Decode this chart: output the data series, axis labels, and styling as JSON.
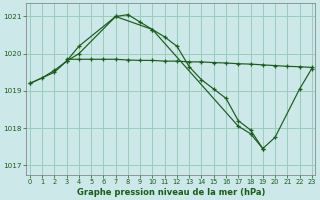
{
  "background_color": "#cce8e8",
  "grid_color": "#99ccbb",
  "line_color": "#1a5c1a",
  "xlabel": "Graphe pression niveau de la mer (hPa)",
  "xlim": [
    -0.3,
    23.3
  ],
  "ylim": [
    1016.75,
    1021.35
  ],
  "yticks": [
    1017,
    1018,
    1019,
    1020,
    1021
  ],
  "xticks": [
    0,
    1,
    2,
    3,
    4,
    5,
    6,
    7,
    8,
    9,
    10,
    11,
    12,
    13,
    14,
    15,
    16,
    17,
    18,
    19,
    20,
    21,
    22,
    23
  ],
  "s1_x": [
    0,
    1,
    2,
    3,
    4,
    7,
    8,
    9,
    10,
    11,
    12,
    13,
    14,
    15,
    16,
    17,
    18,
    19
  ],
  "s1_y": [
    1019.2,
    1019.35,
    1019.55,
    1019.8,
    1020.0,
    1021.0,
    1021.05,
    1020.85,
    1020.65,
    1020.45,
    1020.2,
    1019.65,
    1019.3,
    1019.05,
    1018.8,
    1018.2,
    1017.95,
    1017.45
  ],
  "s2_x": [
    0,
    2,
    3,
    4,
    7,
    10,
    17,
    18,
    19,
    20,
    22,
    23
  ],
  "s2_y": [
    1019.2,
    1019.5,
    1019.8,
    1020.2,
    1021.0,
    1020.65,
    1018.05,
    1017.85,
    1017.45,
    1017.75,
    1019.05,
    1019.6
  ],
  "s3_x": [
    3,
    4,
    5,
    6,
    7,
    8,
    9,
    10,
    11,
    12,
    13,
    14,
    15,
    16,
    17,
    18,
    19,
    20,
    21,
    22,
    23
  ],
  "s3_y": [
    1019.85,
    1019.85,
    1019.85,
    1019.85,
    1019.85,
    1019.83,
    1019.82,
    1019.82,
    1019.8,
    1019.8,
    1019.78,
    1019.78,
    1019.76,
    1019.75,
    1019.73,
    1019.72,
    1019.7,
    1019.68,
    1019.66,
    1019.65,
    1019.63
  ]
}
